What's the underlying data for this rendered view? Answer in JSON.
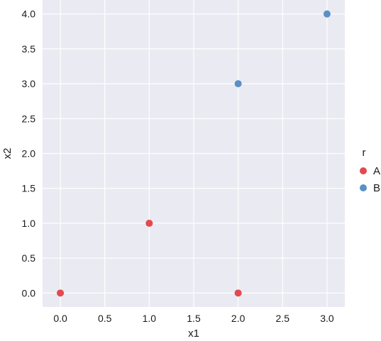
{
  "colors": {
    "panel_background": "#EAEAF2",
    "grid": "#FFFFFF",
    "series_A": "#E24A4F",
    "series_B": "#5A90C4"
  },
  "chart_data": {
    "type": "scatter",
    "title": "",
    "xlabel": "x1",
    "ylabel": "x2",
    "xlim": [
      -0.2,
      3.2
    ],
    "ylim": [
      -0.2,
      4.2
    ],
    "xticks": [
      0.0,
      0.5,
      1.0,
      1.5,
      2.0,
      2.5,
      3.0
    ],
    "yticks": [
      0.0,
      0.5,
      1.0,
      1.5,
      2.0,
      2.5,
      3.0,
      3.5,
      4.0
    ],
    "xtick_labels": [
      "0.0",
      "0.5",
      "1.0",
      "1.5",
      "2.0",
      "2.5",
      "3.0"
    ],
    "ytick_labels": [
      "0.0",
      "0.5",
      "1.0",
      "1.5",
      "2.0",
      "2.5",
      "3.0",
      "3.5",
      "4.0"
    ],
    "grid": true,
    "legend": {
      "title": "r",
      "placement": "right",
      "entries": [
        "A",
        "B"
      ]
    },
    "series": [
      {
        "name": "A",
        "color": "#E24A4F",
        "points": [
          {
            "x": 0,
            "y": 0
          },
          {
            "x": 1,
            "y": 1
          },
          {
            "x": 2,
            "y": 0
          }
        ]
      },
      {
        "name": "B",
        "color": "#5A90C4",
        "points": [
          {
            "x": 2,
            "y": 3
          },
          {
            "x": 3,
            "y": 4
          }
        ]
      }
    ]
  }
}
